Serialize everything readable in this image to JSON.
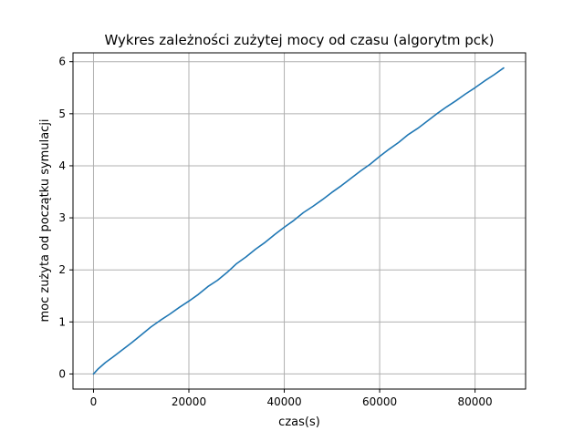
{
  "chart_data": {
    "type": "line",
    "title": "Wykres zależności zużytej mocy od czasu (algorytm pck)",
    "xlabel": "czas(s)",
    "ylabel": "moc zużyta od początku symulacji",
    "xlim": [
      -4300,
      90600
    ],
    "ylim": [
      -0.29,
      6.17
    ],
    "x_ticks": [
      0,
      20000,
      40000,
      60000,
      80000
    ],
    "y_ticks": [
      0,
      1,
      2,
      3,
      4,
      5,
      6
    ],
    "grid": true,
    "legend": "none",
    "series": [
      {
        "color": "#1f77b4",
        "x": [
          0,
          1000,
          2500,
          4000,
          6000,
          8000,
          10000,
          12000,
          14000,
          16000,
          18000,
          20000,
          22000,
          24000,
          26000,
          28000,
          30000,
          32000,
          34000,
          36000,
          38000,
          40000,
          42000,
          44000,
          46000,
          48000,
          50000,
          52000,
          54000,
          56000,
          58000,
          60000,
          62000,
          64000,
          66000,
          68000,
          70000,
          72000,
          74000,
          76000,
          78000,
          80000,
          82000,
          84000,
          86000
        ],
        "y": [
          0,
          0.1,
          0.22,
          0.32,
          0.46,
          0.6,
          0.75,
          0.9,
          1.03,
          1.15,
          1.28,
          1.4,
          1.53,
          1.68,
          1.8,
          1.95,
          2.12,
          2.25,
          2.4,
          2.53,
          2.68,
          2.82,
          2.95,
          3.1,
          3.22,
          3.35,
          3.49,
          3.62,
          3.76,
          3.9,
          4.03,
          4.18,
          4.32,
          4.45,
          4.6,
          4.72,
          4.86,
          5.0,
          5.13,
          5.25,
          5.38,
          5.5,
          5.63,
          5.75,
          5.88
        ]
      }
    ]
  }
}
